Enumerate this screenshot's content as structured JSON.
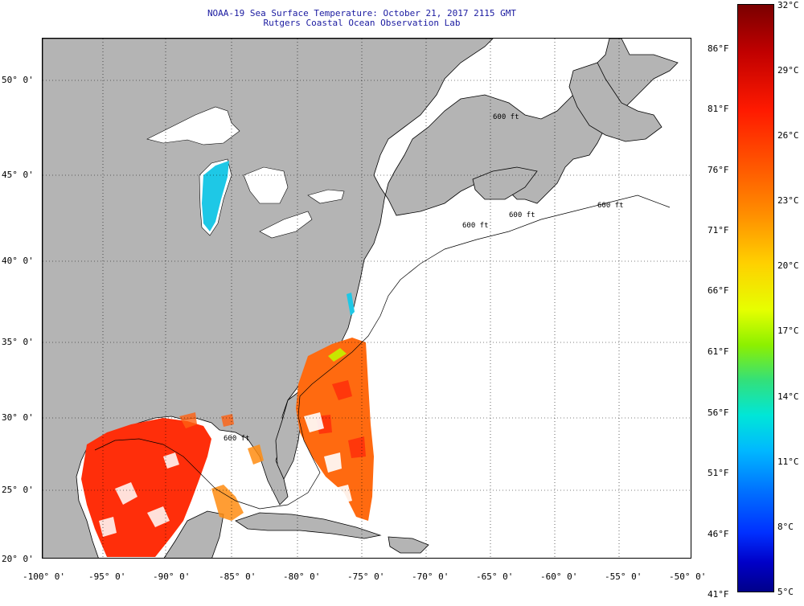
{
  "title": {
    "line1": "NOAA-19 Sea Surface Temperature:  October 21, 2017 2115 GMT",
    "line2": "Rutgers Coastal Ocean Observation Lab"
  },
  "axes": {
    "x_labels": [
      "-100° 0'",
      "-95° 0'",
      "-90° 0'",
      "-85° 0'",
      "-80° 0'",
      "-75° 0'",
      "-70° 0'",
      "-65° 0'",
      "-60° 0'",
      "-55° 0'",
      "-50° 0'"
    ],
    "y_labels": [
      "50° 0'",
      "45° 0'",
      "40° 0'",
      "35° 0'",
      "30° 0'",
      "25° 0'",
      "20° 0'"
    ]
  },
  "isobath_labels": [
    "600 ft",
    "600 ft",
    "600 ft",
    "600 ft",
    "600 ft"
  ],
  "colorbar": {
    "celsius_labels": [
      "32°C",
      "29°C",
      "26°C",
      "23°C",
      "20°C",
      "17°C",
      "14°C",
      "11°C",
      "8°C",
      "5°C"
    ],
    "fahrenheit_labels": [
      "86°F",
      "81°F",
      "76°F",
      "71°F",
      "66°F",
      "61°F",
      "56°F",
      "51°F",
      "46°F",
      "41°F"
    ]
  },
  "colors": {
    "land": "#b4b4b4",
    "water_no_data": "#ffffff",
    "title_text": "#1a1aa0",
    "sst_warm": "#ff3010",
    "sst_orange": "#ff8c10",
    "sst_cool": "#1ec8e6"
  }
}
